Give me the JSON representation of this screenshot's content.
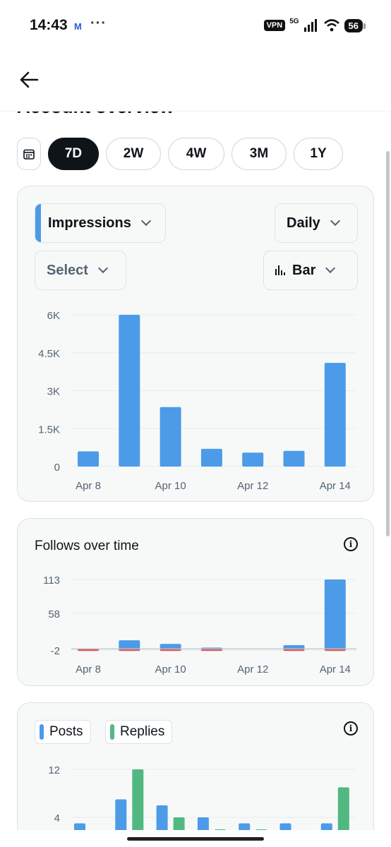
{
  "status_bar": {
    "time": "14:43",
    "mail_glyph": "M",
    "overflow": "···",
    "vpn": "VPN",
    "network": "5G",
    "battery": "56"
  },
  "header": {
    "back_icon": "arrow-left-icon"
  },
  "page_title": "Account overview",
  "ranges": [
    {
      "label": "7D",
      "active": true
    },
    {
      "label": "2W",
      "active": false
    },
    {
      "label": "4W",
      "active": false
    },
    {
      "label": "3M",
      "active": false
    },
    {
      "label": "1Y",
      "active": false
    }
  ],
  "impressions_card": {
    "metric_label": "Impressions",
    "interval_label": "Daily",
    "compare_label": "Select",
    "chart_type_label": "Bar"
  },
  "follows_card": {
    "title": "Follows over time"
  },
  "posts_card": {
    "legend": [
      "Posts",
      "Replies"
    ]
  },
  "colors": {
    "blue": "#4c9be8",
    "green": "#52b882",
    "red": "#e0545a",
    "chip_active": "#0f1419"
  },
  "chart_data": [
    {
      "type": "bar",
      "categories": [
        "Apr 8",
        "Apr 9",
        "Apr 10",
        "Apr 11",
        "Apr 12",
        "Apr 13",
        "Apr 14"
      ],
      "x_tick_labels": [
        "Apr 8",
        "",
        "Apr 10",
        "",
        "Apr 12",
        "",
        "Apr 14"
      ],
      "series": [
        {
          "values": [
            600,
            6000,
            2350,
            700,
            550,
            620,
            4100
          ]
        }
      ],
      "y_ticks": [
        "0",
        "1.5K",
        "3K",
        "4.5K",
        "6K"
      ],
      "ylim": [
        0,
        6000
      ],
      "grid": true
    },
    {
      "type": "bar",
      "categories": [
        "Apr 8",
        "Apr 9",
        "Apr 10",
        "Apr 11",
        "Apr 12",
        "Apr 13",
        "Apr 14"
      ],
      "x_tick_labels": [
        "Apr 8",
        "",
        "Apr 10",
        "",
        "Apr 12",
        "",
        "Apr 14"
      ],
      "series": [
        {
          "values": [
            0,
            14,
            8,
            2,
            0,
            6,
            113
          ]
        },
        {
          "values": [
            -2,
            -1,
            -1,
            -2,
            0,
            -2,
            -1
          ]
        }
      ],
      "y_ticks": [
        "-2",
        "58",
        "113"
      ],
      "ylim": [
        -2,
        113
      ],
      "grid": true
    },
    {
      "type": "bar",
      "categories": [
        "Apr 8",
        "Apr 9",
        "Apr 10",
        "Apr 11",
        "Apr 12",
        "Apr 13",
        "Apr 14"
      ],
      "series": [
        {
          "name": "Posts",
          "values": [
            3,
            7,
            6,
            4,
            3,
            3,
            3
          ]
        },
        {
          "name": "Replies",
          "values": [
            1,
            12,
            4,
            2,
            2,
            0,
            9
          ]
        }
      ],
      "y_ticks": [
        "4",
        "12"
      ],
      "ylim": [
        0,
        12
      ],
      "grid": true
    }
  ]
}
